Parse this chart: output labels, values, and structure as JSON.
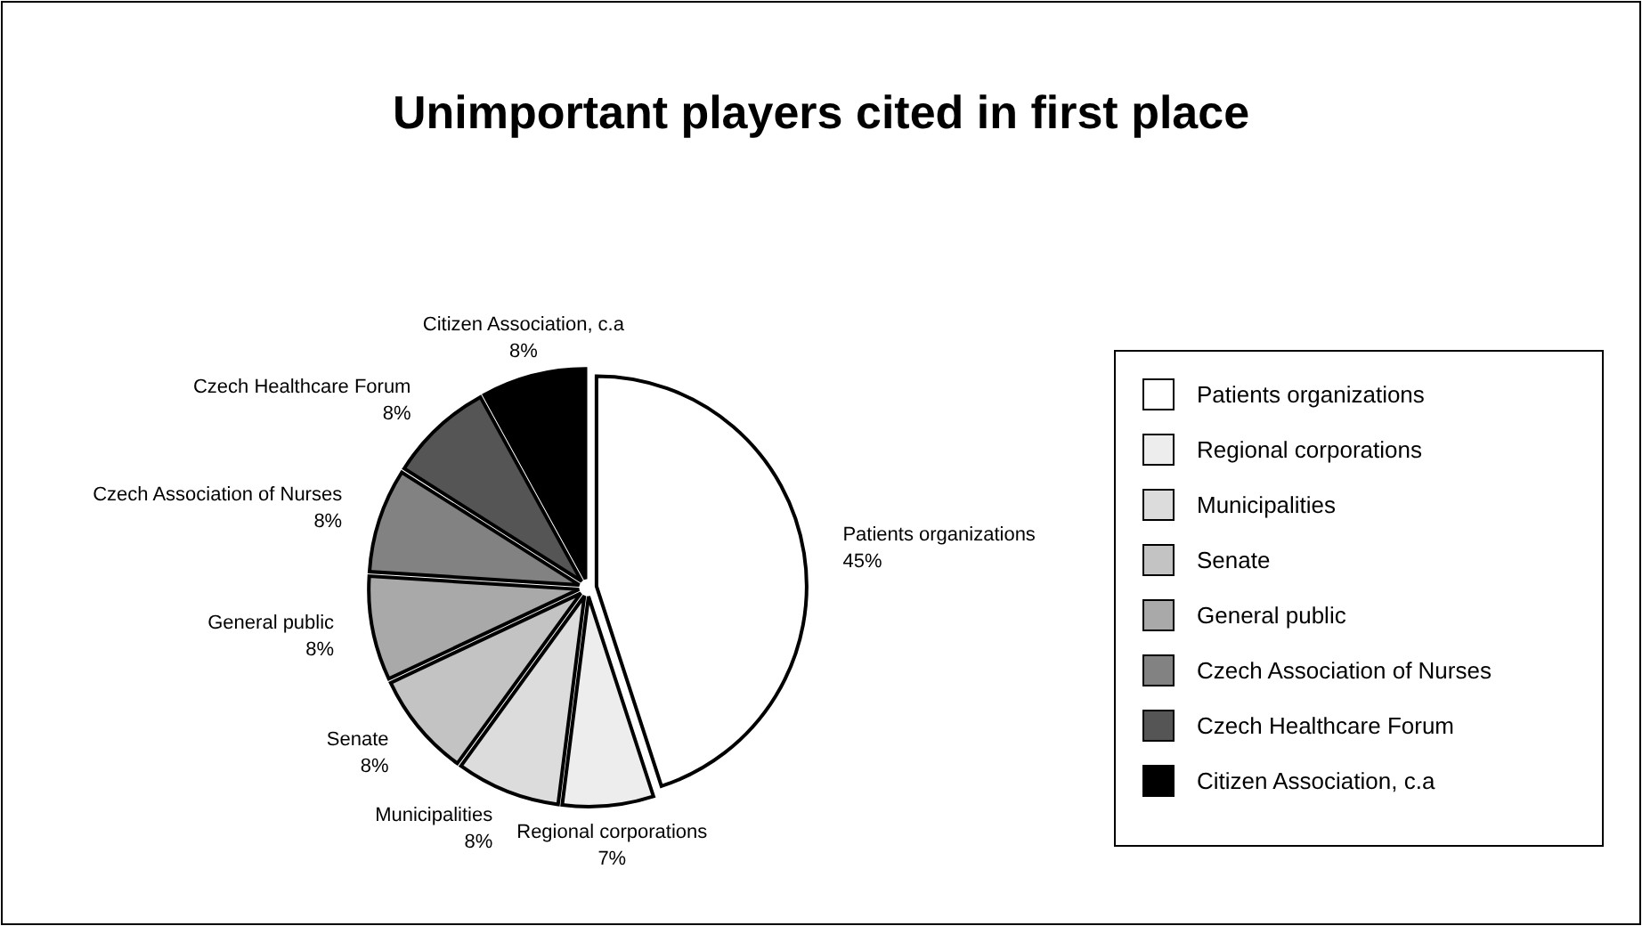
{
  "chart_data": {
    "type": "pie",
    "title": "Unimportant players cited in first place",
    "categories": [
      "Patients organizations",
      "Regional corporations",
      "Municipalities",
      "Senate",
      "General public",
      "Czech Association of Nurses",
      "Czech Healthcare Forum",
      "Citizen Association, c.a"
    ],
    "values": [
      45,
      7,
      8,
      8,
      8,
      8,
      8,
      8
    ],
    "colors": [
      "#ffffff",
      "#ededed",
      "#dcdcdc",
      "#c3c3c3",
      "#a9a9a9",
      "#828282",
      "#555555",
      "#000000"
    ],
    "value_labels": [
      "45%",
      "7%",
      "8%",
      "8%",
      "8%",
      "8%",
      "8%",
      "8%"
    ],
    "legend": "right"
  }
}
